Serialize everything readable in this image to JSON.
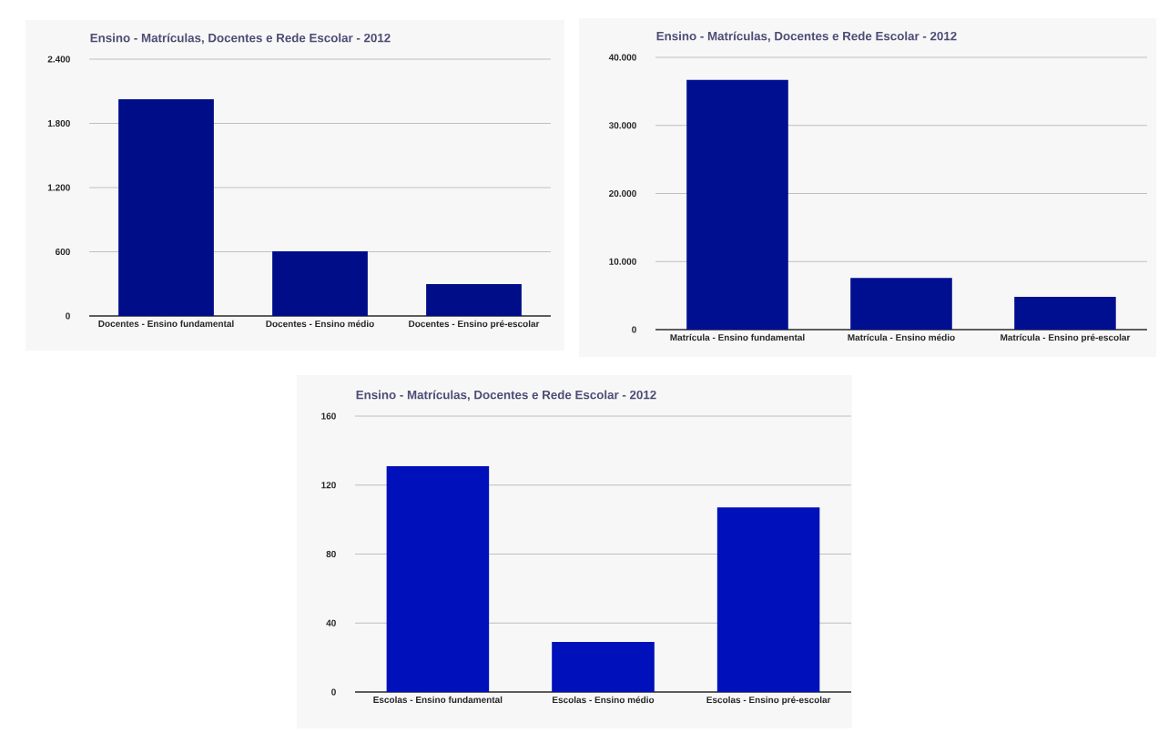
{
  "chart_data": [
    {
      "type": "bar",
      "title": "Ensino - Matrículas, Docentes e Rede Escolar - 2012",
      "categories": [
        "Docentes - Ensino fundamental",
        "Docentes - Ensino médio",
        "Docentes - Ensino pré-escolar"
      ],
      "values": [
        2025,
        604,
        298
      ],
      "color": "#000d88",
      "ylim": [
        0,
        2400
      ],
      "yticks": [
        0,
        600,
        {
          "value": 1200,
          "label": "1.200"
        },
        {
          "value": 1800,
          "label": "1.800"
        },
        {
          "value": 2400,
          "label": "2.400"
        }
      ],
      "grid": "y"
    },
    {
      "type": "bar",
      "title": "Ensino - Matrículas, Docentes e Rede Escolar - 2012",
      "categories": [
        "Matrícula - Ensino fundamental",
        "Matrícula - Ensino médio",
        "Matrícula - Ensino pré-escolar"
      ],
      "values": [
        36700,
        7600,
        4800
      ],
      "color": "#000f90",
      "ylim": [
        0,
        40000
      ],
      "yticks": [
        0,
        {
          "value": 10000,
          "label": "10.000"
        },
        {
          "value": 20000,
          "label": "20.000"
        },
        {
          "value": 30000,
          "label": "30.000"
        },
        {
          "value": 40000,
          "label": "40.000"
        }
      ],
      "grid": "y"
    },
    {
      "type": "bar",
      "title": "Ensino - Matrículas, Docentes e Rede Escolar - 2012",
      "categories": [
        "Escolas - Ensino fundamental",
        "Escolas - Ensino médio",
        "Escolas - Ensino pré-escolar"
      ],
      "values": [
        131,
        29,
        107
      ],
      "color": "#0011bb",
      "ylim": [
        0,
        160
      ],
      "yticks": [
        0,
        40,
        80,
        120,
        160
      ],
      "grid": "y"
    }
  ]
}
